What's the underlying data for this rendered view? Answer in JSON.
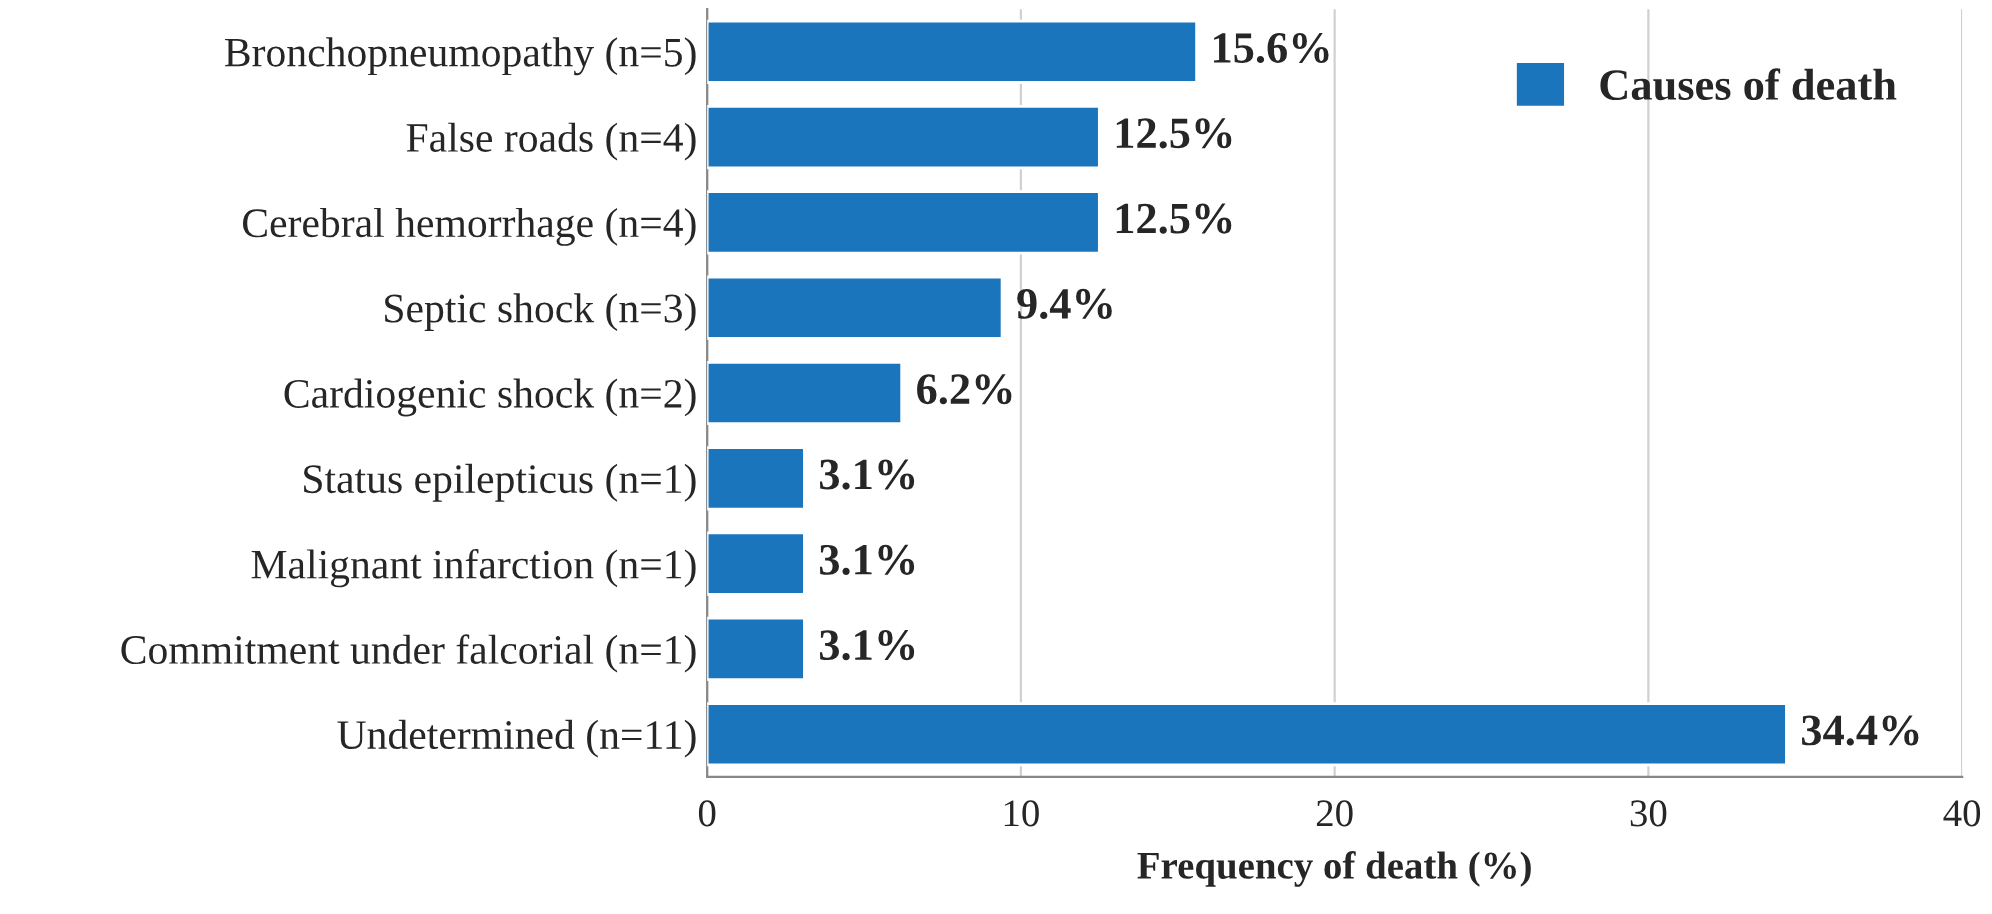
{
  "chart_data": {
    "type": "bar",
    "orientation": "horizontal",
    "xlabel": "Frequency of death (%)",
    "categories": [
      "Bronchopneumopathy (n=5)",
      "False roads (n=4)",
      "Cerebral hemorrhage (n=4)",
      "Septic shock (n=3)",
      "Cardiogenic shock (n=2)",
      "Status epilepticus (n=1)",
      "Malignant infarction (n=1)",
      "Commitment under falcorial (n=1)",
      "Undetermined (n=11)"
    ],
    "series": [
      {
        "name": "Causes of death",
        "color": "#1b75bc",
        "values": [
          15.6,
          12.5,
          12.5,
          9.4,
          6.2,
          3.1,
          3.1,
          3.1,
          34.4
        ],
        "value_labels": [
          "15.6%",
          "12.5%",
          "12.5%",
          "9.4%",
          "6.2%",
          "3.1%",
          "3.1%",
          "3.1%",
          "34.4%"
        ]
      }
    ],
    "xlim": [
      0,
      40
    ],
    "xticks": [
      0,
      10,
      20,
      30,
      40
    ],
    "grid": "x",
    "legend": "top right"
  }
}
